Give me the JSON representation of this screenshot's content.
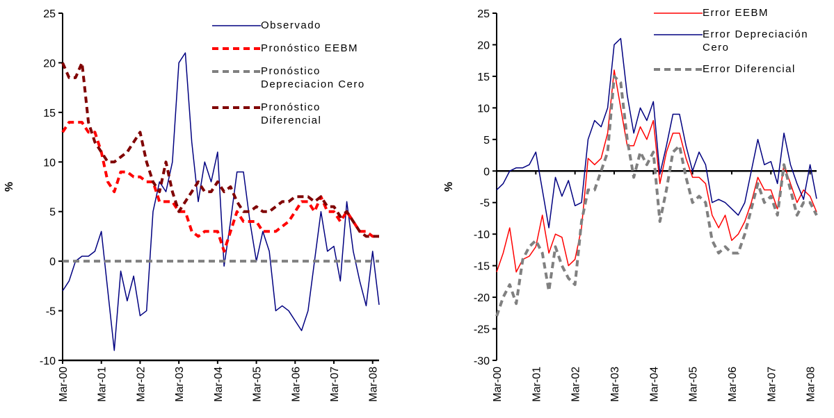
{
  "chart_data": [
    {
      "type": "line",
      "ylabel": "%",
      "x": [
        0,
        2,
        4,
        6,
        8,
        10,
        12,
        14,
        16,
        18,
        20,
        22,
        24,
        26,
        28,
        30,
        32,
        34,
        36,
        38,
        40,
        42,
        44,
        46,
        48,
        50,
        52,
        54,
        56,
        58,
        60,
        62,
        64,
        66,
        68,
        70,
        72,
        74,
        76,
        78,
        80,
        82,
        84,
        86,
        88,
        90,
        92,
        94,
        96,
        98
      ],
      "xlim": [
        0,
        98
      ],
      "xticks": [
        {
          "value": 0,
          "label": "Mar-00"
        },
        {
          "value": 12,
          "label": "Mar-01"
        },
        {
          "value": 24,
          "label": "Mar-02"
        },
        {
          "value": 36,
          "label": "Mar-03"
        },
        {
          "value": 48,
          "label": "Mar-04"
        },
        {
          "value": 60,
          "label": "Mar-05"
        },
        {
          "value": 72,
          "label": "Mar-06"
        },
        {
          "value": 84,
          "label": "Mar-07"
        },
        {
          "value": 96,
          "label": "Mar-08"
        }
      ],
      "ylim": [
        -10,
        25
      ],
      "yticks": [
        -10,
        -5,
        0,
        5,
        10,
        15,
        20,
        25
      ],
      "legend": "upper right",
      "series": [
        {
          "name": "Observado",
          "color": "#000080",
          "dash": "solid",
          "values": [
            -3,
            -2,
            0,
            0.5,
            0.5,
            1,
            3,
            -3,
            -9,
            -1,
            -4,
            -1.5,
            -5.5,
            -5,
            5,
            8,
            7,
            10,
            20,
            21,
            12,
            6,
            10,
            8,
            11,
            -0.5,
            4,
            9,
            9,
            4,
            0,
            3,
            1,
            -5,
            -4.5,
            -5,
            -6,
            -7,
            -5,
            0,
            5,
            1,
            1.5,
            -2,
            6,
            1,
            -2,
            -4.5,
            1,
            -4.4
          ]
        },
        {
          "name": "Pronóstico EEBM",
          "color": "#ff0000",
          "dash": "dashed",
          "values": [
            13,
            14,
            14,
            14,
            13,
            13,
            11,
            8,
            7,
            9,
            9,
            8.5,
            8.5,
            8,
            8,
            6,
            6,
            6,
            5,
            5,
            3,
            2.5,
            3,
            3,
            3,
            1,
            3,
            5,
            4,
            4,
            4,
            3,
            3,
            3,
            3.5,
            4,
            5,
            6,
            6,
            5,
            6.5,
            5,
            5,
            4,
            5,
            4,
            3,
            3,
            2.5,
            2.5
          ]
        },
        {
          "name": "Pronóstico Depreciacion Cero",
          "color": "#808080",
          "dash": "dashed",
          "values": [
            0,
            0,
            0,
            0,
            0,
            0,
            0,
            0,
            0,
            0,
            0,
            0,
            0,
            0,
            0,
            0,
            0,
            0,
            0,
            0,
            0,
            0,
            0,
            0,
            0,
            0,
            0,
            0,
            0,
            0,
            0,
            0,
            0,
            0,
            0,
            0,
            0,
            0,
            0,
            0,
            0,
            0,
            0,
            0,
            0,
            0,
            0,
            0,
            0,
            0
          ]
        },
        {
          "name": "Pronóstico Diferencial",
          "color": "#800000",
          "dash": "dashed",
          "values": [
            20,
            18.5,
            18.5,
            20,
            14,
            12,
            11,
            10,
            10,
            10.5,
            11,
            12,
            13,
            10,
            8,
            7,
            10,
            7,
            5,
            6,
            7,
            8,
            7,
            7,
            8,
            7,
            7.5,
            6,
            5,
            5,
            5.5,
            5,
            5,
            5.5,
            6,
            6,
            6.5,
            6.5,
            6.5,
            6,
            6.5,
            5.5,
            5.5,
            4.5,
            5,
            4,
            3,
            2.5,
            2.5,
            2.5
          ]
        }
      ]
    },
    {
      "type": "line",
      "ylabel": "%",
      "x": [
        0,
        2,
        4,
        6,
        8,
        10,
        12,
        14,
        16,
        18,
        20,
        22,
        24,
        26,
        28,
        30,
        32,
        34,
        36,
        38,
        40,
        42,
        44,
        46,
        48,
        50,
        52,
        54,
        56,
        58,
        60,
        62,
        64,
        66,
        68,
        70,
        72,
        74,
        76,
        78,
        80,
        82,
        84,
        86,
        88,
        90,
        92,
        94,
        96,
        98
      ],
      "xlim": [
        0,
        98
      ],
      "xticks": [
        {
          "value": 0,
          "label": "Mar-00"
        },
        {
          "value": 12,
          "label": "Mar-01"
        },
        {
          "value": 24,
          "label": "Mar-02"
        },
        {
          "value": 36,
          "label": "Mar-03"
        },
        {
          "value": 48,
          "label": "Mar-04"
        },
        {
          "value": 60,
          "label": "Mar-05"
        },
        {
          "value": 72,
          "label": "Mar-06"
        },
        {
          "value": 84,
          "label": "Mar-07"
        },
        {
          "value": 96,
          "label": "Mar-08"
        }
      ],
      "ylim": [
        -30,
        25
      ],
      "yticks": [
        -30,
        -25,
        -20,
        -15,
        -10,
        -5,
        0,
        5,
        10,
        15,
        20,
        25
      ],
      "zero_line": true,
      "legend": "upper right",
      "series": [
        {
          "name": "Error EEBM",
          "color": "#ff0000",
          "dash": "solid",
          "values": [
            -16,
            -13,
            -9,
            -16,
            -14,
            -13.5,
            -12,
            -7,
            -13,
            -10,
            -10.5,
            -15,
            -14,
            -9,
            2,
            1,
            2,
            6,
            16,
            10,
            4,
            4,
            7,
            5,
            8,
            -2,
            3,
            6,
            6,
            2,
            -1,
            -1,
            -2,
            -7,
            -9,
            -7,
            -11,
            -10,
            -8,
            -5,
            -1,
            -3,
            -3,
            -6,
            1,
            -2,
            -5,
            -3,
            -4,
            -6.5
          ]
        },
        {
          "name": "Error Depreciación Cero",
          "color": "#000080",
          "dash": "solid",
          "values": [
            -3,
            -2,
            0,
            0.5,
            0.5,
            1,
            3,
            -3,
            -9,
            -1,
            -4,
            -1.5,
            -5.5,
            -5,
            5,
            8,
            7,
            10,
            20,
            21,
            12,
            6,
            10,
            8,
            11,
            -0.5,
            4,
            9,
            9,
            4,
            0,
            3,
            1,
            -5,
            -4.5,
            -5,
            -6,
            -7,
            -5,
            0,
            5,
            1,
            1.5,
            -2,
            6,
            1,
            -2,
            -4.5,
            1,
            -4.4
          ]
        },
        {
          "name": "Error Diferencial",
          "color": "#808080",
          "dash": "dashed",
          "values": [
            -23,
            -20,
            -18,
            -21,
            -14,
            -12,
            -11,
            -13,
            -19,
            -12,
            -15,
            -17,
            -18,
            -8,
            -3,
            -3,
            0,
            3,
            15,
            14,
            5,
            -1,
            3,
            1,
            3,
            -8,
            -3,
            3,
            4,
            -1,
            -5,
            -4,
            -5,
            -11,
            -13,
            -12,
            -13,
            -13,
            -10,
            -6,
            -2,
            -5,
            -4,
            -7,
            1,
            -3,
            -7,
            -5,
            -5,
            -7
          ]
        }
      ]
    }
  ]
}
